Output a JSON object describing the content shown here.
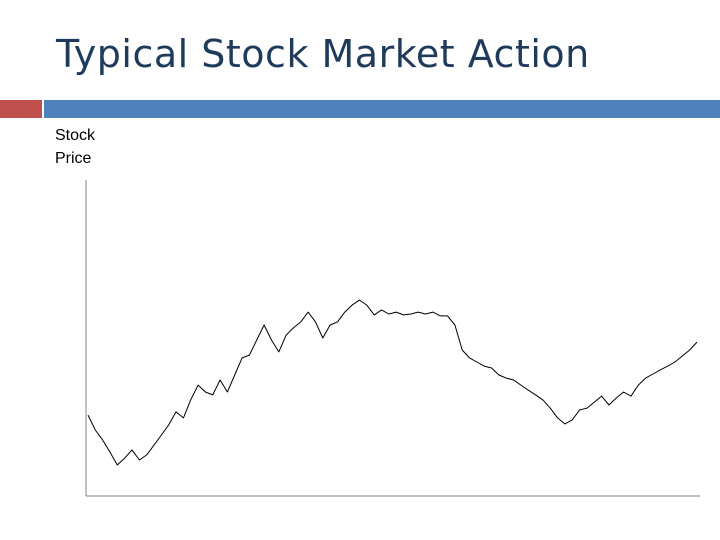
{
  "chart_data": {
    "type": "line",
    "title": "Typical Stock Market Action",
    "y_label": "Stock Price",
    "values": [
      25.6,
      20.9,
      17.7,
      13.9,
      9.8,
      12.0,
      14.6,
      11.4,
      13.0,
      16.1,
      19.3,
      22.5,
      26.6,
      24.7,
      30.4,
      35.1,
      32.9,
      32.0,
      36.7,
      32.9,
      38.3,
      43.7,
      44.6,
      49.4,
      54.1,
      49.4,
      45.6,
      50.9,
      53.2,
      55.1,
      58.2,
      55.1,
      50.0,
      54.1,
      55.1,
      58.2,
      60.4,
      62.0,
      60.4,
      57.3,
      58.9,
      57.6,
      58.2,
      57.3,
      57.6,
      58.2,
      57.6,
      58.2,
      57.0,
      57.0,
      54.1,
      46.2,
      43.7,
      42.4,
      41.1,
      40.5,
      38.3,
      37.3,
      36.7,
      35.1,
      33.5,
      32.0,
      30.4,
      27.8,
      24.7,
      22.8,
      24.1,
      27.2,
      27.8,
      29.7,
      31.6,
      28.8,
      31.0,
      32.9,
      31.6,
      35.1,
      37.3,
      38.6,
      39.9,
      41.1,
      42.4,
      44.3,
      46.2,
      48.7
    ],
    "ylim": [
      0,
      100
    ],
    "color": "#000000"
  }
}
